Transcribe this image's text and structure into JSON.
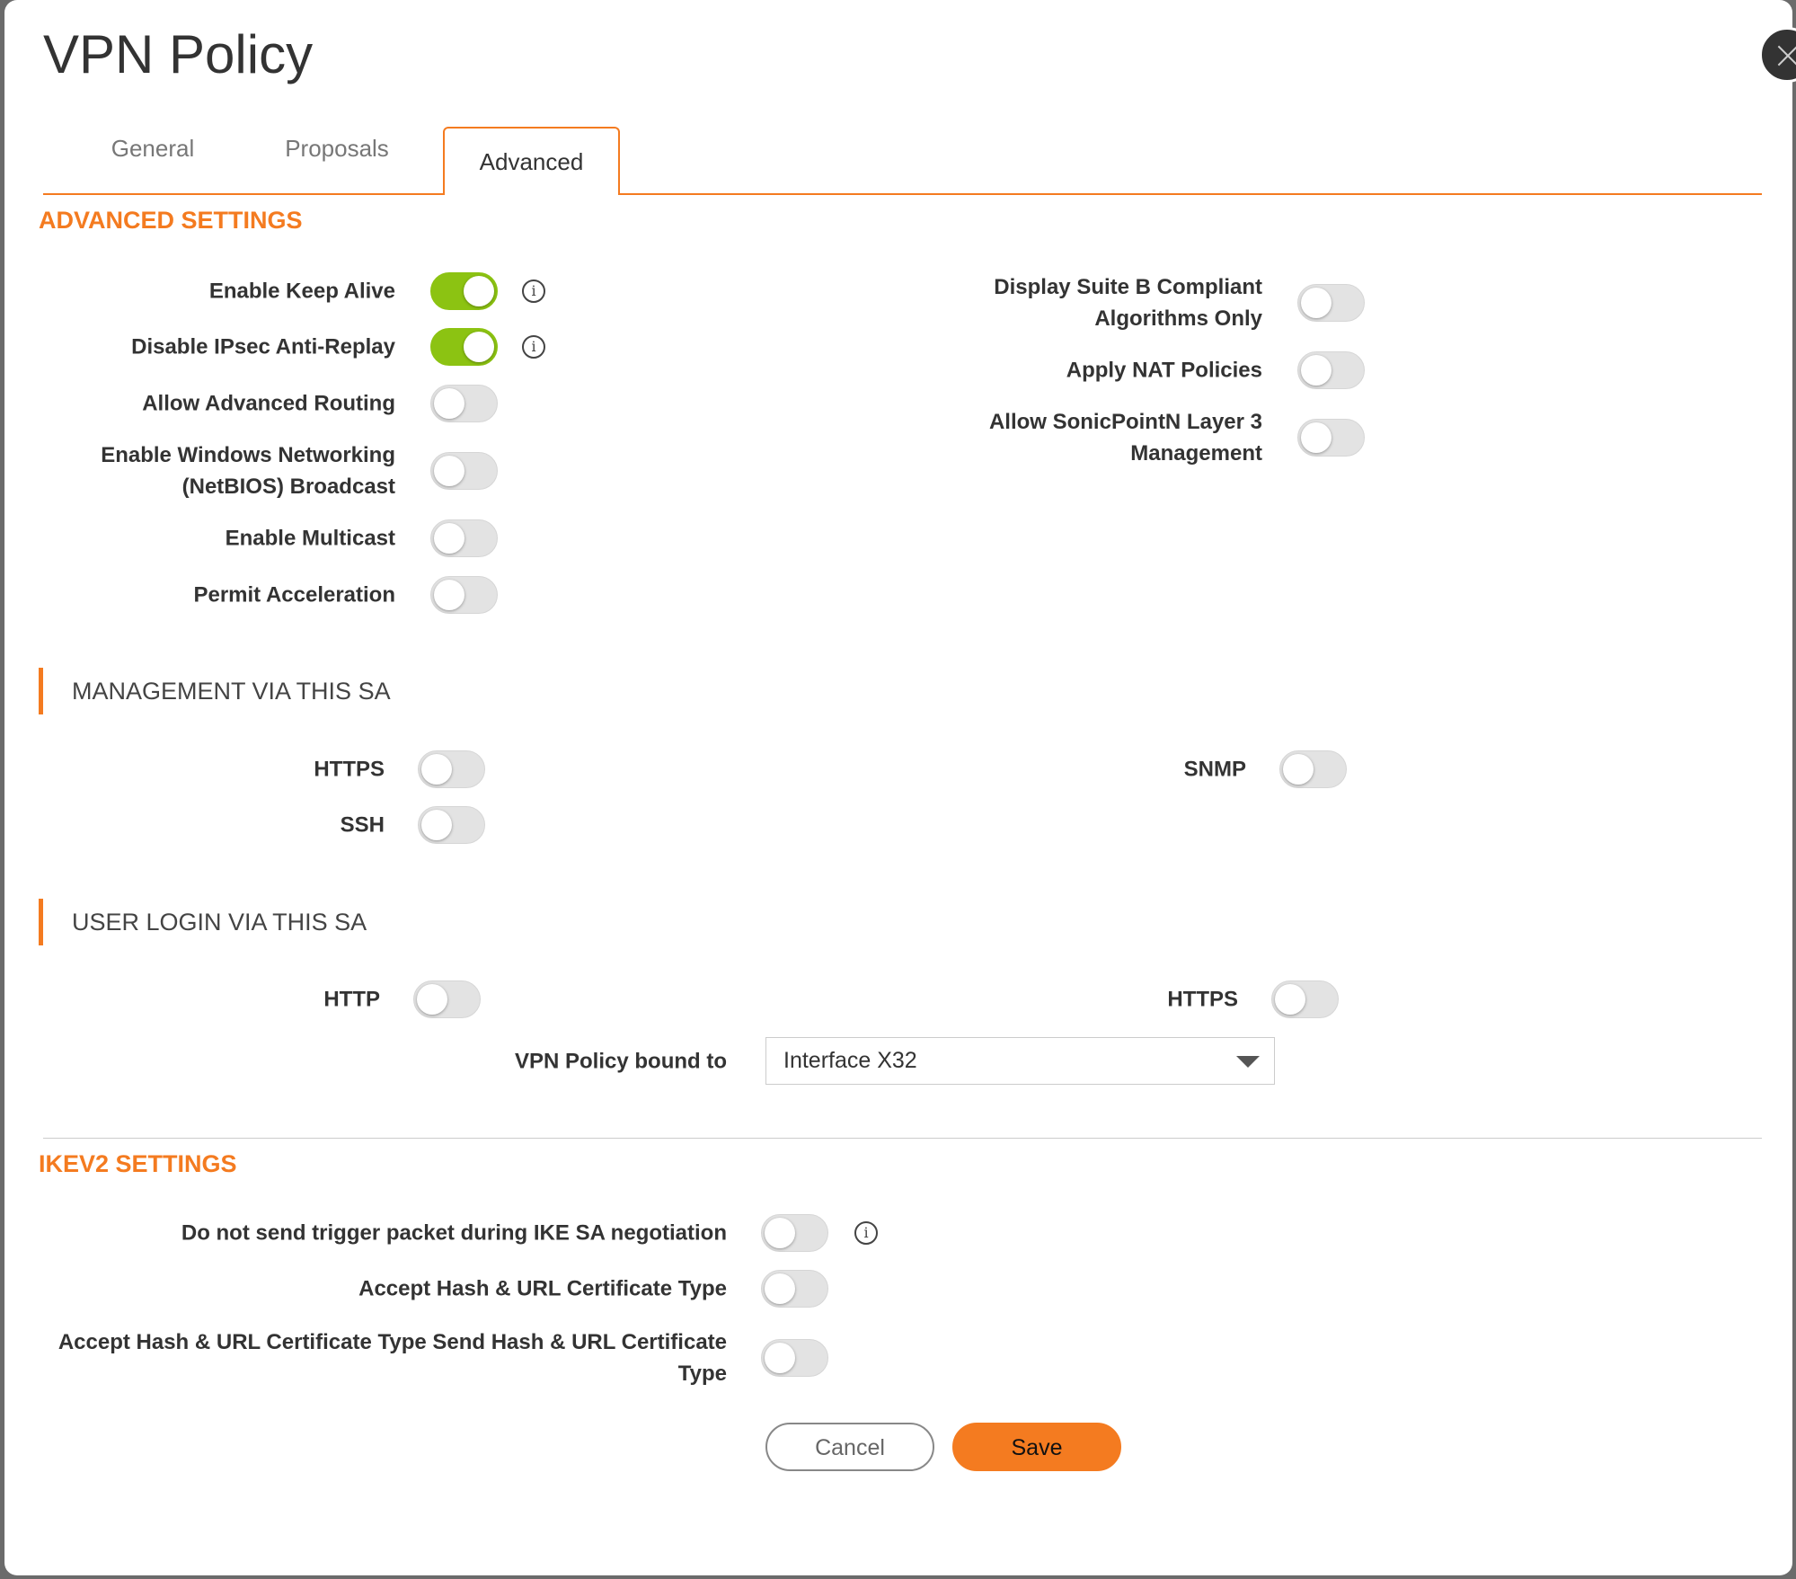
{
  "dialog": {
    "title": "VPN Policy",
    "close_icon": "close-icon"
  },
  "tabs": [
    {
      "label": "General"
    },
    {
      "label": "Proposals"
    },
    {
      "label": "Advanced",
      "active": true
    }
  ],
  "colors": {
    "accent": "#f47b20",
    "toggle_on": "#8cc312",
    "toggle_off": "#e3e3e3"
  },
  "advanced": {
    "heading": "ADVANCED SETTINGS",
    "left": [
      {
        "label": "Enable Keep Alive",
        "on": true,
        "info": true
      },
      {
        "label": "Disable IPsec Anti-Replay",
        "on": true,
        "info": true
      },
      {
        "label": "Allow Advanced Routing",
        "on": false
      },
      {
        "label": "Enable Windows Networking (NetBIOS) Broadcast",
        "on": false
      },
      {
        "label": "Enable Multicast",
        "on": false
      },
      {
        "label": "Permit Acceleration",
        "on": false
      }
    ],
    "right": [
      {
        "label": "Display Suite B Compliant Algorithms Only",
        "on": false
      },
      {
        "label": "Apply NAT Policies",
        "on": false
      },
      {
        "label": "Allow SonicPointN Layer 3 Management",
        "on": false
      }
    ]
  },
  "management": {
    "heading": "MANAGEMENT VIA THIS SA",
    "https": {
      "label": "HTTPS",
      "on": false
    },
    "ssh": {
      "label": "SSH",
      "on": false
    },
    "snmp": {
      "label": "SNMP",
      "on": false
    }
  },
  "user_login": {
    "heading": "USER LOGIN VIA THIS SA",
    "http": {
      "label": "HTTP",
      "on": false
    },
    "https": {
      "label": "HTTPS",
      "on": false
    },
    "bound_label": "VPN Policy bound to",
    "bound_value": "Interface X32"
  },
  "ikev2": {
    "heading": "IKEV2 SETTINGS",
    "items": [
      {
        "label": "Do not send trigger packet during IKE SA negotiation",
        "on": false,
        "info": true
      },
      {
        "label": "Accept Hash & URL Certificate Type",
        "on": false
      },
      {
        "label": "Accept Hash & URL Certificate Type Send Hash & URL Certificate Type",
        "on": false
      }
    ]
  },
  "buttons": {
    "cancel": "Cancel",
    "save": "Save"
  }
}
